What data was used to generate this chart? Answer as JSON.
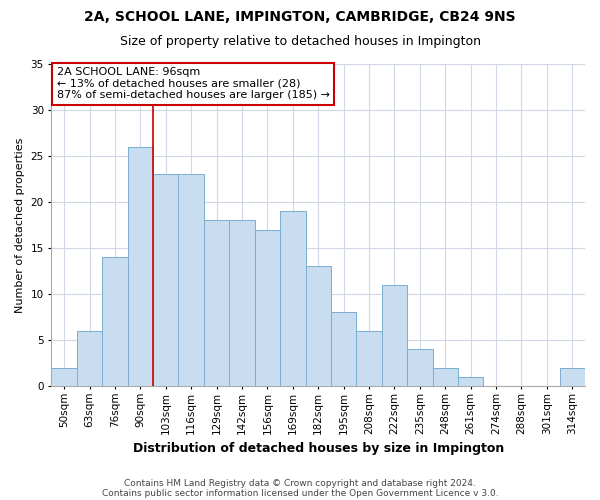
{
  "title1": "2A, SCHOOL LANE, IMPINGTON, CAMBRIDGE, CB24 9NS",
  "title2": "Size of property relative to detached houses in Impington",
  "xlabel": "Distribution of detached houses by size in Impington",
  "ylabel": "Number of detached properties",
  "bar_color": "#c8ddf0",
  "bar_edge_color": "#7aaed0",
  "categories": [
    "50sqm",
    "63sqm",
    "76sqm",
    "90sqm",
    "103sqm",
    "116sqm",
    "129sqm",
    "142sqm",
    "156sqm",
    "169sqm",
    "182sqm",
    "195sqm",
    "208sqm",
    "222sqm",
    "235sqm",
    "248sqm",
    "261sqm",
    "274sqm",
    "288sqm",
    "301sqm",
    "314sqm"
  ],
  "values": [
    2,
    6,
    14,
    26,
    23,
    23,
    18,
    18,
    17,
    19,
    13,
    8,
    6,
    11,
    4,
    2,
    1,
    0,
    0,
    0,
    2
  ],
  "ylim": [
    0,
    35
  ],
  "yticks": [
    0,
    5,
    10,
    15,
    20,
    25,
    30,
    35
  ],
  "property_line_index": 3,
  "annotation_text": "2A SCHOOL LANE: 96sqm\n← 13% of detached houses are smaller (28)\n87% of semi-detached houses are larger (185) →",
  "annotation_box_color": "#ffffff",
  "annotation_box_edge_color": "#cc0000",
  "property_line_color": "#cc0000",
  "footer1": "Contains HM Land Registry data © Crown copyright and database right 2024.",
  "footer2": "Contains public sector information licensed under the Open Government Licence v 3.0.",
  "background_color": "#ffffff",
  "grid_color": "#d0d8e8",
  "title1_fontsize": 10,
  "title2_fontsize": 9,
  "xlabel_fontsize": 9,
  "ylabel_fontsize": 8,
  "tick_fontsize": 7.5,
  "annotation_fontsize": 8,
  "footer_fontsize": 6.5
}
